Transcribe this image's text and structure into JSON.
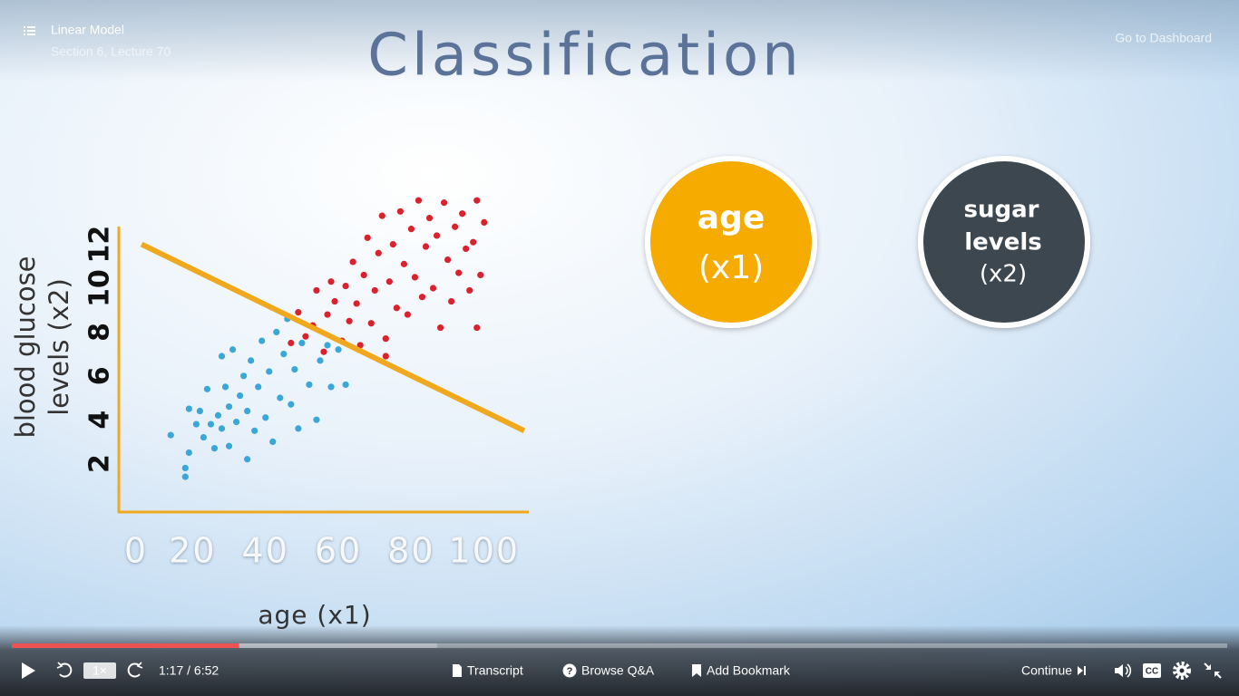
{
  "header": {
    "course_title": "Linear Model",
    "section": "Section 6, Lecture 70",
    "dashboard_link": "Go to Dashboard"
  },
  "slide": {
    "title": "Classification",
    "feature_1": {
      "lines": [
        "age",
        "(x1)"
      ]
    },
    "feature_2": {
      "lines": [
        "sugar",
        "levels",
        "(x2)"
      ]
    }
  },
  "chart_data": {
    "type": "scatter",
    "xlabel": "age (x1)",
    "ylabel_lines": [
      "blood glucose",
      "levels (x2)"
    ],
    "xlim": [
      0,
      112
    ],
    "ylim": [
      0,
      14.5
    ],
    "xticks": [
      0,
      20,
      40,
      60,
      80,
      100
    ],
    "yticks": [
      2,
      4,
      6,
      8,
      10,
      12
    ],
    "axis_color": "#f0a81e",
    "series": [
      {
        "color": "#3aa7d9",
        "x": [
          14,
          18,
          18,
          19,
          19,
          21,
          22,
          23,
          24,
          25,
          26,
          27,
          28,
          28,
          29,
          30,
          30,
          31,
          32,
          33,
          34,
          35,
          35,
          36,
          37,
          38,
          39,
          40,
          41,
          42,
          43,
          44,
          45,
          46,
          47,
          48,
          49,
          50,
          52,
          54,
          55,
          57,
          58,
          60,
          62
        ],
        "y": [
          3.3,
          1.8,
          1.4,
          2.5,
          4.5,
          3.8,
          4.4,
          3.2,
          5.4,
          3.8,
          2.7,
          4.2,
          6.9,
          3.6,
          5.5,
          2.8,
          4.6,
          7.2,
          3.9,
          5.1,
          6.0,
          2.2,
          4.4,
          6.7,
          3.5,
          5.5,
          7.6,
          4.1,
          6.2,
          3.0,
          8.0,
          5.0,
          7.0,
          8.6,
          4.7,
          6.3,
          3.6,
          7.5,
          5.6,
          4.0,
          6.7,
          7.4,
          5.5,
          7.2,
          5.6
        ]
      },
      {
        "color": "#d8232e",
        "x": [
          47,
          49,
          51,
          53,
          54,
          56,
          57,
          58,
          59,
          61,
          62,
          63,
          64,
          65,
          66,
          67,
          68,
          69,
          70,
          71,
          72,
          73,
          74,
          75,
          76,
          77,
          78,
          79,
          80,
          81,
          82,
          83,
          84,
          85,
          86,
          87,
          88,
          89,
          90,
          91,
          92,
          93,
          94,
          95,
          96,
          97,
          98,
          99,
          100,
          98,
          73
        ],
        "y": [
          7.5,
          8.9,
          7.8,
          8.3,
          9.9,
          7.1,
          8.8,
          10.3,
          9.4,
          7.6,
          10.1,
          8.5,
          11.2,
          9.3,
          7.4,
          10.6,
          12.3,
          8.4,
          9.9,
          11.6,
          13.3,
          7.7,
          10.3,
          12.0,
          9.1,
          13.5,
          11.1,
          8.8,
          12.7,
          10.5,
          14.0,
          9.6,
          11.9,
          13.2,
          10.0,
          12.4,
          8.2,
          13.9,
          11.3,
          9.4,
          12.8,
          10.7,
          13.4,
          11.8,
          9.9,
          12.1,
          14.0,
          10.6,
          13.0,
          8.2,
          6.9
        ]
      }
    ],
    "decision_line": {
      "color": "#f0a81e",
      "x": [
        6,
        111
      ],
      "y": [
        12,
        3.5
      ]
    }
  },
  "player": {
    "progress_percent": 18.7,
    "buffered_percent": 35,
    "speed": "1×",
    "time": "1:17 / 6:52",
    "transcript": "Transcript",
    "browse_qa": "Browse Q&A",
    "add_bookmark": "Add Bookmark",
    "continue": "Continue"
  }
}
